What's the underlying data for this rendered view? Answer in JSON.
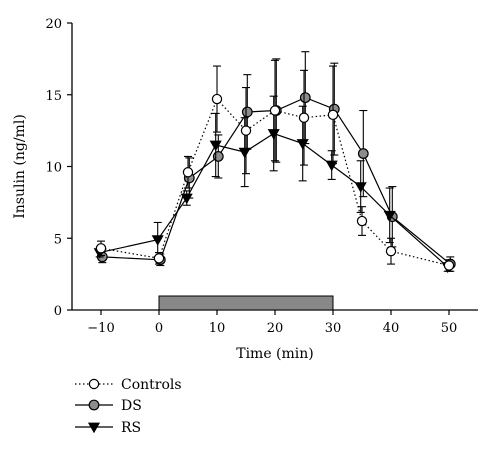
{
  "chart_data": {
    "type": "line",
    "xlabel": "Time (min)",
    "ylabel": "Insulin (ng/ml)",
    "xlim": [
      -15,
      55
    ],
    "ylim": [
      0,
      20
    ],
    "xticks": [
      -10,
      0,
      10,
      20,
      30,
      40,
      50
    ],
    "yticks": [
      0,
      5,
      10,
      15,
      20
    ],
    "grid": false,
    "legend_position": "bottom-left",
    "shaded_interval": [
      0,
      30
    ],
    "series": [
      {
        "name": "Controls",
        "marker": "open-circle",
        "line_style": "dotted",
        "x": [
          -10,
          0,
          5,
          10,
          15,
          20,
          25,
          30,
          35,
          40,
          50
        ],
        "y": [
          4.3,
          3.6,
          9.6,
          14.7,
          12.5,
          13.9,
          13.4,
          13.6,
          6.2,
          4.1,
          3.1
        ],
        "err": [
          0.5,
          0.4,
          1.1,
          2.3,
          3.0,
          3.5,
          3.3,
          3.4,
          1.0,
          0.9,
          0.4
        ]
      },
      {
        "name": "DS",
        "marker": "filled-circle",
        "line_style": "solid",
        "x": [
          -10,
          0,
          5,
          10,
          15,
          20,
          25,
          30,
          35,
          40,
          50
        ],
        "y": [
          3.7,
          3.5,
          9.2,
          10.7,
          13.8,
          13.9,
          14.8,
          14.0,
          10.9,
          6.5,
          3.2
        ],
        "err": [
          0.4,
          0.4,
          1.4,
          1.5,
          2.6,
          3.6,
          3.2,
          3.2,
          3.0,
          2.1,
          0.5
        ]
      },
      {
        "name": "RS",
        "marker": "filled-triangle-down",
        "line_style": "solid",
        "x": [
          -10,
          0,
          5,
          10,
          15,
          20,
          25,
          30,
          35,
          40,
          50
        ],
        "y": [
          4.0,
          4.9,
          7.8,
          11.5,
          11.0,
          12.3,
          11.6,
          10.1,
          8.6,
          6.6,
          3.0
        ],
        "err": [
          0.3,
          1.2,
          0.5,
          2.2,
          2.4,
          2.6,
          2.6,
          1.0,
          1.8,
          1.9,
          0.3
        ]
      }
    ],
    "colors": {
      "axis": "#000000",
      "line": "#000000",
      "ds_fill": "#8c8c8c",
      "bar_fill": "#888888",
      "open_fill": "#ffffff"
    }
  }
}
